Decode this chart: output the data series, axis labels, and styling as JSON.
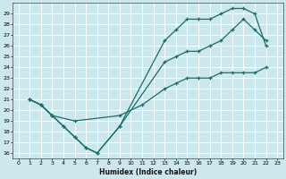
{
  "xlabel": "Humidex (Indice chaleur)",
  "bg_color": "#cce8ec",
  "grid_color": "#ffffff",
  "line_color": "#1a6b6b",
  "xlim": [
    -0.5,
    23.5
  ],
  "ylim": [
    15.5,
    30.0
  ],
  "xticks": [
    0,
    1,
    2,
    3,
    4,
    5,
    6,
    7,
    8,
    9,
    10,
    11,
    12,
    13,
    14,
    15,
    16,
    17,
    18,
    19,
    20,
    21,
    22,
    23
  ],
  "yticks": [
    16,
    17,
    18,
    19,
    20,
    21,
    22,
    23,
    24,
    25,
    26,
    27,
    28,
    29
  ],
  "curveA_x": [
    1,
    2,
    3,
    4,
    5,
    6,
    7,
    9,
    13,
    14,
    15,
    16,
    17,
    18,
    19,
    20,
    21,
    22
  ],
  "curveA_y": [
    21,
    20.5,
    19.5,
    18.5,
    17.5,
    16.5,
    16,
    18.5,
    26.5,
    27.5,
    28.5,
    28.5,
    28.5,
    29,
    29.5,
    29.5,
    29,
    26
  ],
  "curveB_x": [
    1,
    2,
    3,
    4,
    5,
    6,
    7,
    9,
    13,
    14,
    15,
    16,
    17,
    18,
    19,
    20,
    21,
    22
  ],
  "curveB_y": [
    21,
    20.5,
    19.5,
    18.5,
    17.5,
    16.5,
    16,
    18.5,
    24.5,
    25,
    25.5,
    25.5,
    26,
    26.5,
    27.5,
    28.5,
    27.5,
    26.5
  ],
  "curveC_x": [
    1,
    2,
    3,
    5,
    9,
    11,
    13,
    14,
    15,
    16,
    17,
    18,
    19,
    20,
    21,
    22
  ],
  "curveC_y": [
    21,
    20.5,
    19.5,
    19,
    19.5,
    20.5,
    22,
    22.5,
    23,
    23,
    23,
    23.5,
    23.5,
    23.5,
    23.5,
    24
  ]
}
